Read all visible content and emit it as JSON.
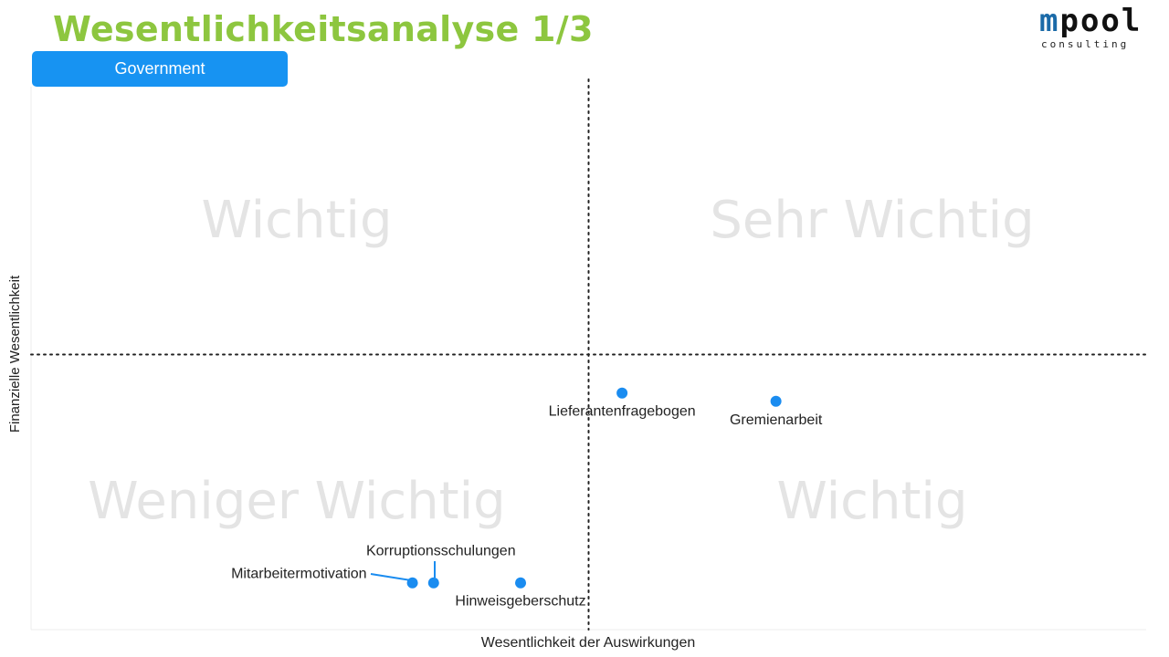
{
  "header": {
    "title": "Wesentlichkeitsanalyse 1/3",
    "tab_label": "Government",
    "logo_main": "mpool",
    "logo_sub": "consulting"
  },
  "colors": {
    "title": "#8dc63f",
    "accent": "#1793f2",
    "point": "#1a8cf0"
  },
  "chart_data": {
    "type": "scatter",
    "xlabel": "Wesentlichkeit der Auswirkungen",
    "ylabel": "Finanzielle Wesentlichkeit",
    "xlim": [
      0,
      10
    ],
    "ylim": [
      0,
      10
    ],
    "threshold_x": 5,
    "threshold_y": 5,
    "grid": false,
    "quadrants": {
      "top_left": "Wichtig",
      "top_right": "Sehr Wichtig",
      "bottom_left": "Weniger Wichtig",
      "bottom_right": "Wichtig"
    },
    "points": [
      {
        "label": "Lieferantenfragebogen",
        "x": 5.3,
        "y": 4.3
      },
      {
        "label": "Gremienarbeit",
        "x": 6.68,
        "y": 4.15
      },
      {
        "label": "Mitarbeitermotivation",
        "x": 3.42,
        "y": 0.85
      },
      {
        "label": "Korruptionsschulungen",
        "x": 3.61,
        "y": 0.85
      },
      {
        "label": "Hinweisgeberschutz",
        "x": 4.39,
        "y": 0.85
      }
    ]
  }
}
